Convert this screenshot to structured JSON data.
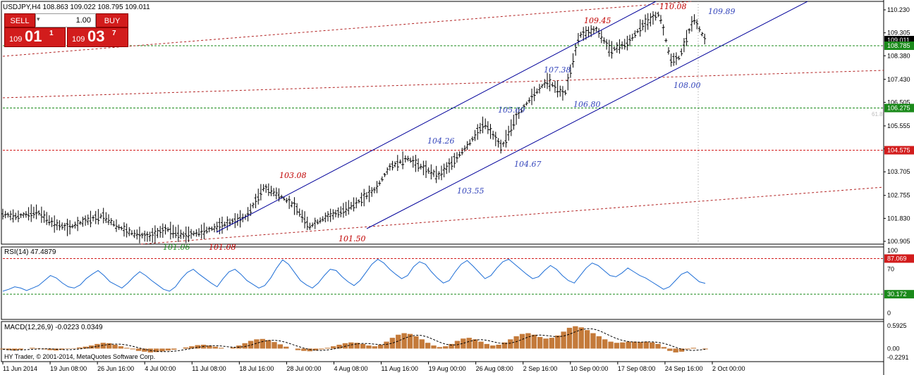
{
  "header": {
    "symbol_line": "USDJPY,H4  108.863 109.022 108.795 109.011",
    "rsi_label": "RSI(14) 47.4879",
    "macd_label": "MACD(12,26,9) -0.0223 0.0349",
    "copyright": "HY Trader, © 2001-2014, MetaQuotes Software Corp."
  },
  "trade_panel": {
    "sell_label": "SELL",
    "buy_label": "BUY",
    "lot_value": "1.00",
    "sell_quote": {
      "pre": "109",
      "big": "01",
      "sup": "1"
    },
    "buy_quote": {
      "pre": "109",
      "big": "03",
      "sup": "7"
    }
  },
  "chart_data": [
    {
      "type": "candlestick",
      "title": "USDJPY,H4",
      "ohlc_last": {
        "open": 108.863,
        "high": 109.022,
        "low": 108.795,
        "close": 109.011
      },
      "ylim": [
        100.905,
        110.23
      ],
      "y_ticks": [
        "110.230",
        "109.305",
        "108.380",
        "107.430",
        "106.505",
        "105.555",
        "104.630",
        "103.705",
        "102.755",
        "101.830",
        "100.905"
      ],
      "x_ticks": [
        "11 Jun 2014",
        "19 Jun 08:00",
        "26 Jun 16:00",
        "4 Jul 00:00",
        "11 Jul 08:00",
        "18 Jul 16:00",
        "28 Jul 00:00",
        "4 Aug 08:00",
        "11 Aug 16:00",
        "19 Aug 00:00",
        "26 Aug 08:00",
        "2 Sep 16:00",
        "10 Sep 00:00",
        "17 Sep 08:00",
        "24 Sep 16:00",
        "2 Oct 00:00"
      ],
      "path_points": [
        [
          0,
          102.0
        ],
        [
          5,
          101.9
        ],
        [
          12,
          102.1
        ],
        [
          18,
          101.6
        ],
        [
          23,
          101.45
        ],
        [
          29,
          101.75
        ],
        [
          35,
          101.95
        ],
        [
          40,
          101.5
        ],
        [
          46,
          101.2
        ],
        [
          51,
          101.08
        ],
        [
          57,
          101.4
        ],
        [
          63,
          101.15
        ],
        [
          68,
          101.25
        ],
        [
          74,
          101.45
        ],
        [
          80,
          101.7
        ],
        [
          85,
          101.9
        ],
        [
          91,
          103.08
        ],
        [
          96,
          102.8
        ],
        [
          102,
          102.3
        ],
        [
          107,
          101.5
        ],
        [
          113,
          101.9
        ],
        [
          118,
          102.1
        ],
        [
          124,
          102.5
        ],
        [
          130,
          103.0
        ],
        [
          135,
          103.9
        ],
        [
          141,
          104.26
        ],
        [
          146,
          103.9
        ],
        [
          152,
          103.55
        ],
        [
          157,
          104.1
        ],
        [
          163,
          104.9
        ],
        [
          168,
          105.69
        ],
        [
          174,
          104.67
        ],
        [
          179,
          105.9
        ],
        [
          185,
          106.8
        ],
        [
          190,
          107.38
        ],
        [
          196,
          106.8
        ],
        [
          201,
          109.2
        ],
        [
          207,
          109.45
        ],
        [
          212,
          108.6
        ],
        [
          218,
          108.9
        ],
        [
          223,
          109.6
        ],
        [
          229,
          110.08
        ],
        [
          233,
          108.2
        ],
        [
          236,
          108.3
        ],
        [
          241,
          109.89
        ],
        [
          245,
          109.01
        ]
      ],
      "annotations": [
        {
          "text": "110.08",
          "color": "#c00000"
        },
        {
          "text": "109.89",
          "color": "#3344bb"
        },
        {
          "text": "109.45",
          "color": "#c00000"
        },
        {
          "text": "107.38",
          "color": "#3344bb"
        },
        {
          "text": "108.00",
          "color": "#3344bb"
        },
        {
          "text": "106.80",
          "color": "#3344bb"
        },
        {
          "text": "105.69",
          "color": "#3344bb"
        },
        {
          "text": "104.26",
          "color": "#3344bb"
        },
        {
          "text": "104.67",
          "color": "#3344bb"
        },
        {
          "text": "103.55",
          "color": "#3344bb"
        },
        {
          "text": "103.08",
          "color": "#c00000"
        },
        {
          "text": "101.50",
          "color": "#c00000"
        },
        {
          "text": "101.06",
          "color": "#1a8a1a"
        },
        {
          "text": "101.08",
          "color": "#c00000"
        }
      ],
      "horizontal_levels": [
        {
          "value": 108.785,
          "label": "108.785",
          "color": "#1a8a1a"
        },
        {
          "value": 106.275,
          "label": "106.275",
          "color": "#1a8a1a"
        },
        {
          "value": 104.575,
          "label": "104.575",
          "color": "#d21c1c"
        }
      ],
      "current_price": "109.011",
      "side_marker": "61.8"
    },
    {
      "type": "line",
      "name": "RSI(14)",
      "value": 47.4879,
      "ylim": [
        0,
        100
      ],
      "y_ticks": [
        "100",
        "70",
        "30",
        "0"
      ],
      "levels": [
        {
          "value": 87.069,
          "label": "87.069",
          "color": "#d21c1c"
        },
        {
          "value": 30.172,
          "label": "30.172",
          "color": "#1a8a1a"
        }
      ],
      "values": [
        35,
        38,
        42,
        40,
        36,
        40,
        44,
        52,
        60,
        56,
        48,
        42,
        40,
        45,
        55,
        62,
        68,
        60,
        50,
        45,
        40,
        48,
        58,
        66,
        60,
        52,
        45,
        38,
        35,
        42,
        55,
        65,
        70,
        62,
        55,
        48,
        42,
        55,
        66,
        70,
        62,
        52,
        46,
        40,
        44,
        56,
        72,
        85,
        78,
        65,
        52,
        45,
        40,
        48,
        60,
        70,
        68,
        58,
        50,
        44,
        52,
        65,
        78,
        86,
        80,
        70,
        62,
        55,
        60,
        74,
        82,
        78,
        66,
        56,
        48,
        52,
        66,
        78,
        84,
        75,
        65,
        55,
        60,
        72,
        82,
        86,
        78,
        70,
        62,
        55,
        58,
        68,
        76,
        70,
        60,
        52,
        48,
        60,
        72,
        80,
        76,
        68,
        60,
        58,
        64,
        72,
        66,
        60,
        56,
        50,
        44,
        38,
        42,
        52,
        62,
        66,
        58,
        50,
        47.49
      ]
    },
    {
      "type": "bar",
      "name": "MACD(12,26,9)",
      "main": -0.0223,
      "signal": 0.0349,
      "ylim": [
        -0.2291,
        0.5925
      ],
      "y_ticks": [
        "0.5925",
        "0.00",
        "-0.2291"
      ],
      "values": [
        -0.02,
        -0.04,
        -0.05,
        -0.03,
        0.0,
        0.02,
        0.01,
        -0.02,
        -0.04,
        -0.05,
        -0.03,
        -0.01,
        0.01,
        0.03,
        0.05,
        0.08,
        0.12,
        0.15,
        0.14,
        0.1,
        0.06,
        0.02,
        -0.02,
        -0.06,
        -0.08,
        -0.1,
        -0.09,
        -0.07,
        -0.05,
        -0.03,
        0.0,
        0.03,
        0.06,
        0.09,
        0.1,
        0.08,
        0.05,
        0.02,
        0.0,
        0.03,
        0.08,
        0.14,
        0.2,
        0.24,
        0.25,
        0.22,
        0.17,
        0.11,
        0.05,
        0.0,
        -0.04,
        -0.06,
        -0.07,
        -0.05,
        -0.02,
        0.02,
        0.06,
        0.1,
        0.14,
        0.16,
        0.15,
        0.12,
        0.08,
        0.06,
        0.1,
        0.18,
        0.28,
        0.36,
        0.4,
        0.38,
        0.32,
        0.24,
        0.15,
        0.08,
        0.04,
        0.06,
        0.12,
        0.2,
        0.26,
        0.28,
        0.24,
        0.18,
        0.12,
        0.08,
        0.1,
        0.16,
        0.24,
        0.32,
        0.38,
        0.4,
        0.36,
        0.3,
        0.26,
        0.28,
        0.34,
        0.44,
        0.54,
        0.58,
        0.55,
        0.48,
        0.4,
        0.32,
        0.24,
        0.18,
        0.15,
        0.16,
        0.18,
        0.18,
        0.17,
        0.18,
        0.16,
        0.12,
        0.04,
        -0.06,
        -0.1,
        -0.08,
        -0.02,
        0.02,
        0.0,
        -0.02
      ]
    }
  ]
}
